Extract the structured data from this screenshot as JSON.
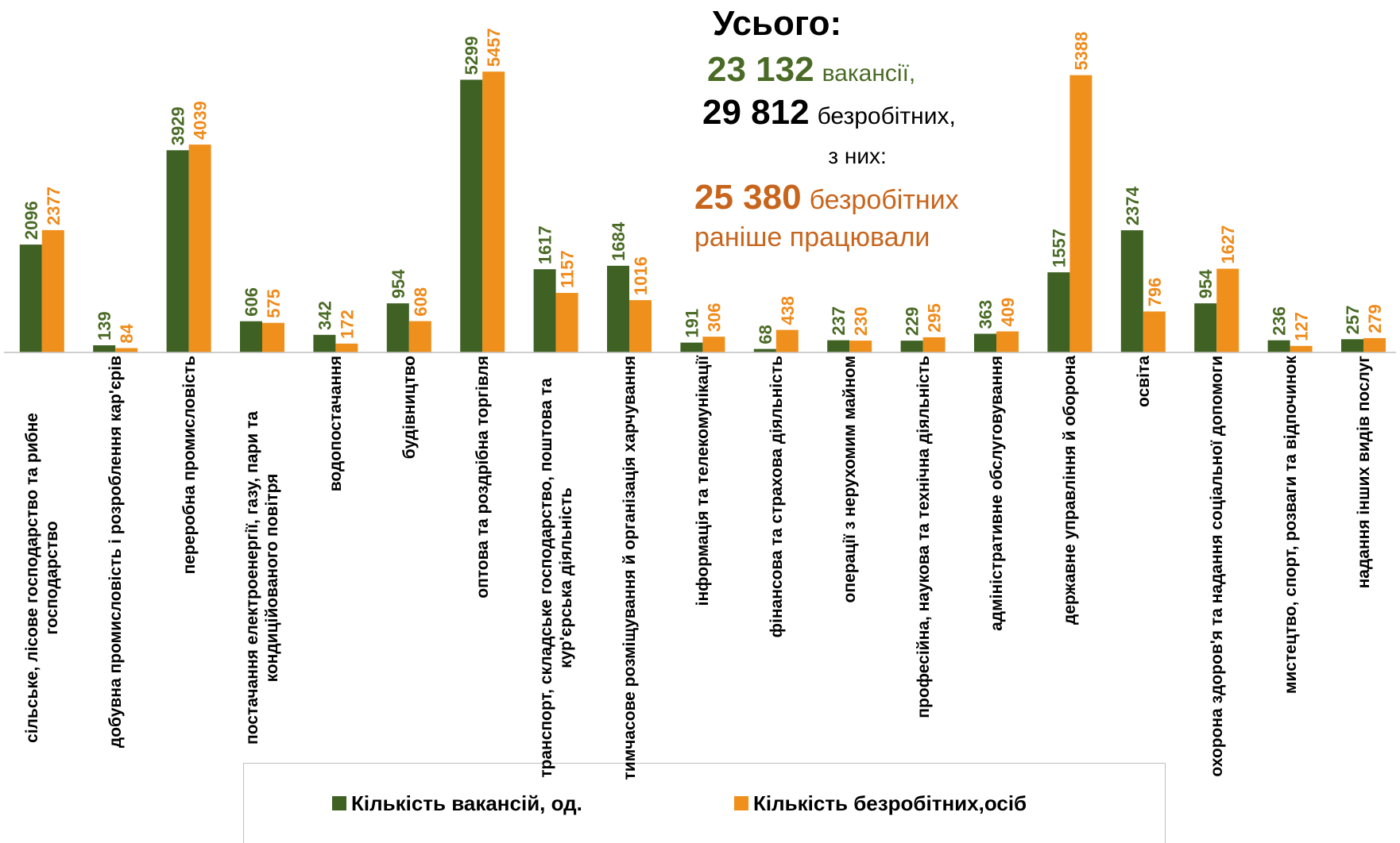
{
  "chart_data": {
    "type": "bar",
    "categories": [
      "сільське, лісове господарство та рибне господарство",
      "добувна промисловість і розроблення кар'єрів",
      "переробна промисловість",
      "постачання електроенергії, газу, пари та кондиційованого повітря",
      "водопостачання",
      "будівництво",
      "оптова та роздрібна торгівля",
      "транспорт, складське господарство, поштова та кур'єрська діяльність",
      "тимчасове розміщування й організація харчування",
      "інформація та телекомунікації",
      "фінансова та страхова діяльність",
      "операції з нерухомим майном",
      "професійна, наукова та технічна діяльність",
      "адміністративне обслуговування",
      "державне управління й оборона",
      "освіта",
      "охорона здоров'я та надання соціальної допомоги",
      "мистецтво, спорт, розваги та відпочинок",
      "надання інших видів послуг"
    ],
    "series": [
      {
        "name": "Кількість вакансій, од.",
        "color": "#3f6124",
        "label_color": "#4a6b26",
        "values": [
          2096,
          139,
          3929,
          606,
          342,
          954,
          5299,
          1617,
          1684,
          191,
          68,
          237,
          229,
          363,
          1557,
          2374,
          954,
          236,
          257
        ]
      },
      {
        "name": "Кількість безробітних,осіб",
        "color": "#f0901c",
        "label_color": "#f08a1a",
        "values": [
          2377,
          84,
          4039,
          575,
          172,
          608,
          5457,
          1157,
          1016,
          306,
          438,
          230,
          295,
          409,
          5388,
          796,
          1627,
          127,
          279
        ]
      }
    ],
    "ylim": [
      0,
      6000
    ],
    "legend": "bottom",
    "annotation": {
      "title": "Усього:",
      "vacancies_number": "23 132",
      "vacancies_text": "вакансії,",
      "unemployed_number": "29 812",
      "unemployed_text": "безробітних,",
      "of_them": "з них:",
      "worked_number": "25 380",
      "worked_text": "безробітних",
      "worked_text2": "раніше працювали"
    }
  }
}
